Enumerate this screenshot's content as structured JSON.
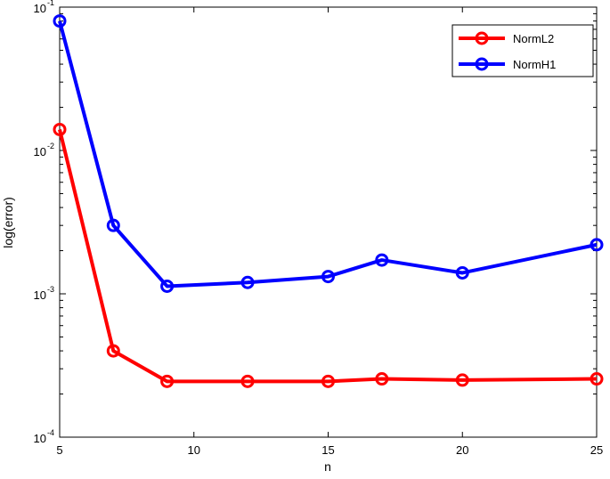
{
  "chart_data": {
    "type": "line",
    "xlabel": "n",
    "ylabel": "log(error)",
    "x": [
      5,
      7,
      9,
      12,
      15,
      17,
      20,
      25
    ],
    "xlim": [
      5,
      25
    ],
    "xticks": [
      5,
      10,
      15,
      20,
      25
    ],
    "yscale": "log",
    "ylim": [
      0.0001,
      0.1
    ],
    "ytick_labels": [
      {
        "base": "10",
        "exp": "-4",
        "value": 0.0001
      },
      {
        "base": "10",
        "exp": "-3",
        "value": 0.001
      },
      {
        "base": "10",
        "exp": "-2",
        "value": 0.01
      },
      {
        "base": "10",
        "exp": "-1",
        "value": 0.1
      }
    ],
    "grid": false,
    "legend_position": "top-right",
    "series": [
      {
        "name": "NormL2",
        "color": "#ff0000",
        "values": [
          0.014,
          0.0004,
          0.000245,
          0.000245,
          0.000245,
          0.000255,
          0.00025,
          0.000255
        ]
      },
      {
        "name": "NormH1",
        "color": "#0000ff",
        "values": [
          0.08,
          0.003,
          0.00113,
          0.0012,
          0.00132,
          0.00172,
          0.0014,
          0.0022
        ]
      }
    ]
  }
}
